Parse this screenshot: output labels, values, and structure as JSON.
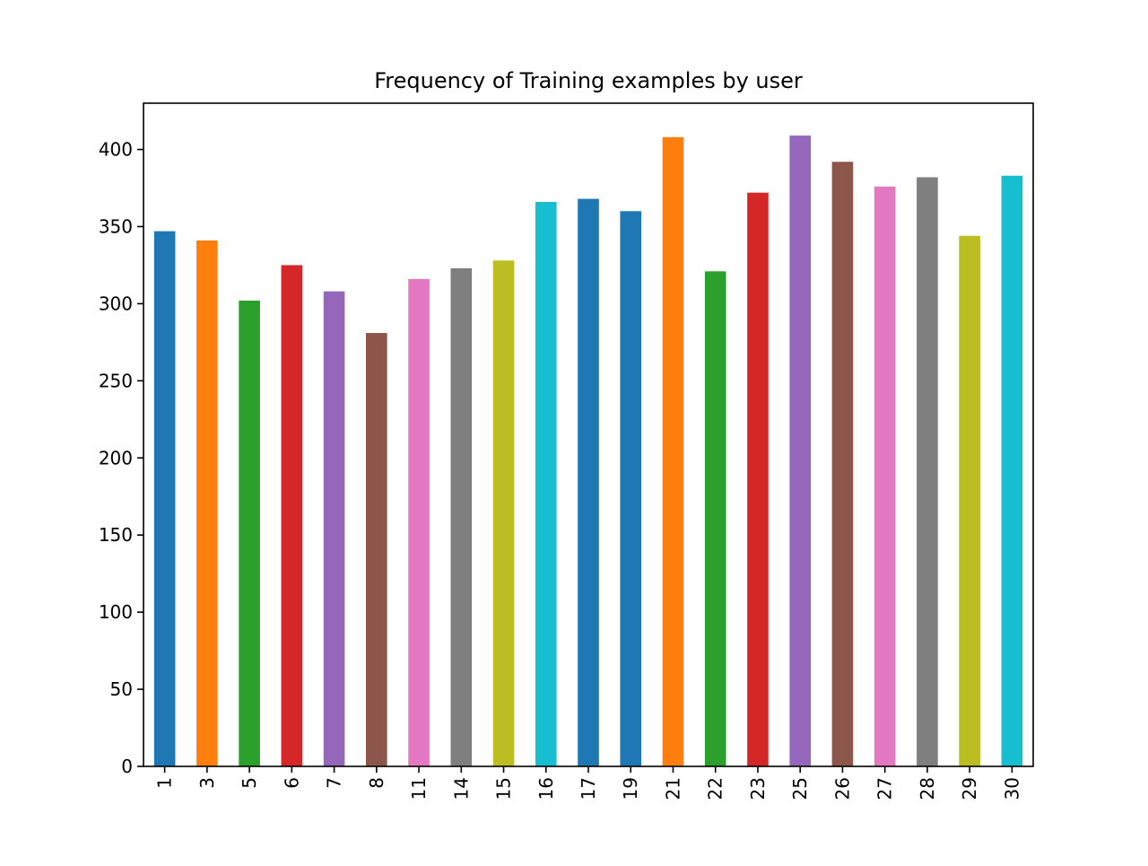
{
  "chart_data": {
    "type": "bar",
    "title": "Frequency of Training examples by user",
    "xlabel": "",
    "ylabel": "",
    "categories": [
      "1",
      "3",
      "5",
      "6",
      "7",
      "8",
      "11",
      "14",
      "15",
      "16",
      "17",
      "19",
      "21",
      "22",
      "23",
      "25",
      "26",
      "27",
      "28",
      "29",
      "30"
    ],
    "values": [
      347,
      341,
      302,
      325,
      308,
      281,
      316,
      323,
      328,
      366,
      368,
      360,
      408,
      321,
      372,
      409,
      392,
      376,
      382,
      344,
      383
    ],
    "ylim": [
      0,
      430
    ],
    "yticks": [
      0,
      50,
      100,
      150,
      200,
      250,
      300,
      350,
      400
    ],
    "bar_colors": [
      "#1f77b4",
      "#ff7f0e",
      "#2ca02c",
      "#d62728",
      "#9467bd",
      "#8c564b",
      "#e377c2",
      "#7f7f7f",
      "#bcbd22",
      "#17becf",
      "#1f77b4",
      "#1f77b4",
      "#ff7f0e",
      "#2ca02c",
      "#d62728",
      "#9467bd",
      "#8c564b",
      "#e377c2",
      "#7f7f7f",
      "#bcbd22",
      "#17becf"
    ],
    "x_tick_rotation": "vertical",
    "grid": false,
    "legend": "none"
  }
}
